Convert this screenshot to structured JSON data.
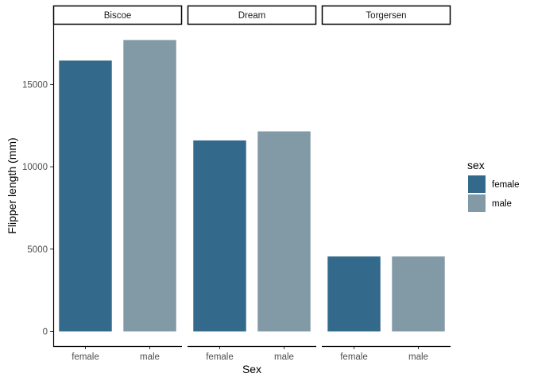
{
  "chart_data": {
    "type": "bar",
    "facet_by": "island",
    "panels": [
      {
        "name": "Biscoe",
        "categories": [
          "female",
          "male"
        ],
        "values": [
          16450,
          17700
        ]
      },
      {
        "name": "Dream",
        "categories": [
          "female",
          "male"
        ],
        "values": [
          11600,
          12150
        ]
      },
      {
        "name": "Torgersen",
        "categories": [
          "female",
          "male"
        ],
        "values": [
          4550,
          4550
        ]
      }
    ],
    "xlabel": "Sex",
    "ylabel": "Flipper length (mm)",
    "ylim": [
      0,
      18500
    ],
    "y_ticks": [
      0,
      5000,
      10000,
      15000
    ],
    "grid": false,
    "legend": {
      "title": "sex",
      "placement": "right",
      "entries": [
        {
          "label": "female",
          "color": "#33698A"
        },
        {
          "label": "male",
          "color": "#8299A6"
        }
      ]
    },
    "colors": {
      "female": "#33698A",
      "male": "#8299A6"
    }
  }
}
